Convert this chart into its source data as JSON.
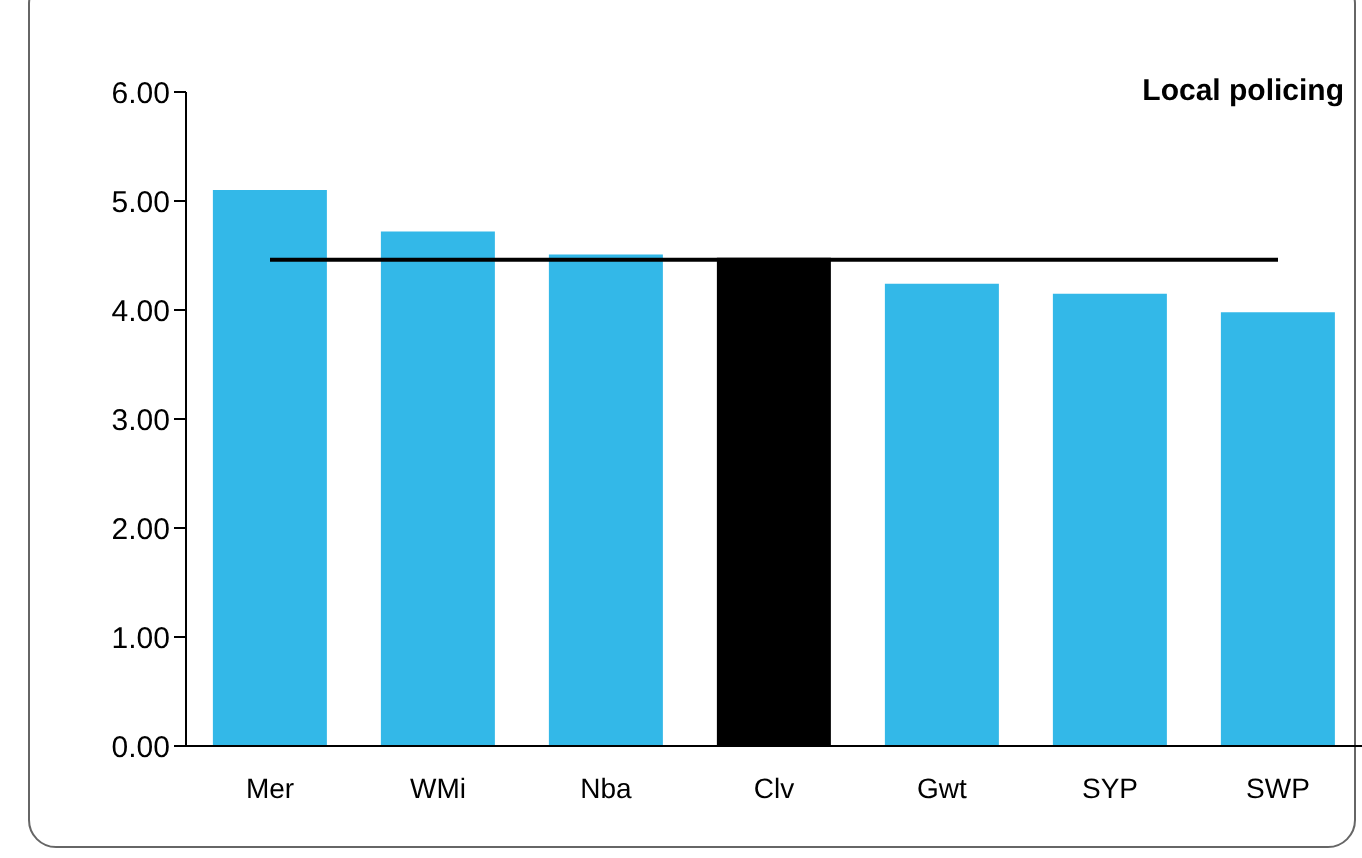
{
  "chart_data": {
    "type": "bar",
    "title": "Local policing",
    "categories": [
      "Mer",
      "WMi",
      "Nba",
      "Clv",
      "Gwt",
      "SYP",
      "SWP"
    ],
    "values": [
      5.1,
      4.72,
      4.51,
      4.48,
      4.24,
      4.15,
      3.98
    ],
    "colors": [
      "#33b8e8",
      "#33b8e8",
      "#33b8e8",
      "#000000",
      "#33b8e8",
      "#33b8e8",
      "#33b8e8"
    ],
    "ylim": [
      0,
      6
    ],
    "yticks": [
      {
        "value": 0,
        "label": "0.00"
      },
      {
        "value": 1,
        "label": "1.00"
      },
      {
        "value": 2,
        "label": "2.00"
      },
      {
        "value": 3,
        "label": "3.00"
      },
      {
        "value": 4,
        "label": "4.00"
      },
      {
        "value": 5,
        "label": "5.00"
      },
      {
        "value": 6,
        "label": "6.00"
      }
    ],
    "ref_lines": [
      {
        "axis": "y",
        "value": 4.46,
        "color": "#000000"
      }
    ],
    "grid": false,
    "legend": false
  }
}
